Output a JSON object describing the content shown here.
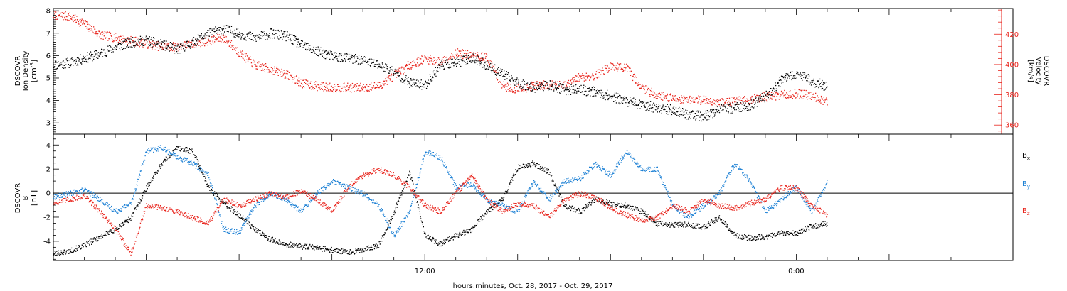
{
  "chart_data": [
    {
      "type": "scatter",
      "panel": "top",
      "ylabel_lines": [
        "DSCOVR",
        "Ion Density"
      ],
      "yunit_left": "[cm",
      "yunit_left_sup": "-3",
      "yunit_left_end": "]",
      "ylim": [
        2.5,
        8.1
      ],
      "yticks": [
        3,
        4,
        5,
        6,
        7,
        8
      ],
      "ylabel_right_lines": [
        "DSCOVR",
        "Velocity",
        "[km/s]"
      ],
      "ylim_right": [
        354,
        437
      ],
      "yticks_right": [
        360,
        380,
        400,
        420
      ],
      "colors": {
        "density": "#000000",
        "velocity": "#e8241c"
      },
      "series": [
        {
          "axis": "left",
          "color": "#000000",
          "x": [
            0.0,
            0.5,
            1.0,
            1.5,
            2.0,
            2.5,
            3.0,
            3.5,
            4.0,
            4.5,
            5.0,
            5.5,
            6.0,
            6.5,
            7.0,
            7.5,
            8.0,
            8.5,
            9.0,
            9.5,
            10.0,
            10.5,
            11.0,
            11.5,
            12.0,
            12.5,
            13.0,
            13.5,
            14.0,
            14.5,
            15.0,
            15.5,
            16.0,
            16.5,
            17.0,
            17.5,
            18.0,
            18.5,
            19.0,
            19.5,
            20.0,
            20.5,
            21.0,
            21.5,
            22.0,
            22.5,
            23.0,
            23.5,
            24.0,
            24.5,
            25.0
          ],
          "values": [
            5.6,
            5.7,
            5.9,
            6.1,
            6.4,
            6.6,
            6.7,
            6.5,
            6.3,
            6.6,
            7.0,
            7.2,
            7.0,
            6.8,
            7.0,
            6.9,
            6.5,
            6.2,
            6.0,
            5.9,
            5.8,
            5.6,
            5.3,
            4.8,
            4.7,
            5.6,
            5.7,
            5.9,
            5.6,
            5.2,
            4.8,
            4.6,
            4.7,
            4.5,
            4.5,
            4.4,
            4.2,
            4.0,
            3.8,
            3.7,
            3.6,
            3.4,
            3.3,
            3.6,
            3.7,
            3.8,
            4.2,
            4.9,
            5.2,
            4.9,
            4.6
          ]
        },
        {
          "axis": "right",
          "color": "#e8241c",
          "x": [
            0.0,
            0.5,
            1.0,
            1.5,
            2.0,
            2.5,
            3.0,
            3.5,
            4.0,
            4.5,
            5.0,
            5.5,
            6.0,
            6.5,
            7.0,
            7.5,
            8.0,
            8.5,
            9.0,
            9.5,
            10.0,
            10.5,
            11.0,
            11.5,
            12.0,
            12.5,
            13.0,
            13.5,
            14.0,
            14.5,
            15.0,
            15.5,
            16.0,
            16.5,
            17.0,
            17.5,
            18.0,
            18.5,
            19.0,
            19.5,
            20.0,
            20.5,
            21.0,
            21.5,
            22.0,
            22.5,
            23.0,
            23.5,
            24.0,
            24.5,
            25.0
          ],
          "values": [
            433,
            432,
            427,
            420,
            418,
            416,
            414,
            412,
            412,
            414,
            416,
            418,
            408,
            400,
            397,
            394,
            388,
            386,
            385,
            385,
            385,
            386,
            393,
            400,
            404,
            402,
            408,
            406,
            405,
            386,
            384,
            386,
            387,
            386,
            392,
            393,
            399,
            398,
            385,
            380,
            378,
            377,
            377,
            375,
            376,
            377,
            379,
            380,
            381,
            380,
            375
          ]
        }
      ]
    },
    {
      "type": "scatter",
      "panel": "bottom",
      "ylabel_lines": [
        "DSCOVR",
        "B"
      ],
      "yunit_left": "[nT]",
      "ylim": [
        -5.6,
        4.9
      ],
      "yticks": [
        -4,
        -2,
        0,
        2,
        4
      ],
      "xlim": [
        0,
        31
      ],
      "xticks_labeled": [
        {
          "x": 12,
          "label": "12:00"
        },
        {
          "x": 24,
          "label": "0:00"
        }
      ],
      "xlabel": "hours:minutes, Oct. 28, 2017 - Oct. 29, 2017",
      "legend_placement": "right",
      "series": [
        {
          "name": "B",
          "sub": "x",
          "color": "#000000",
          "x": [
            0.0,
            0.5,
            1.0,
            1.5,
            2.0,
            2.5,
            3.0,
            3.5,
            4.0,
            4.5,
            5.0,
            5.5,
            6.0,
            6.5,
            7.0,
            7.5,
            8.0,
            8.5,
            9.0,
            9.5,
            10.0,
            10.5,
            11.0,
            11.5,
            12.0,
            12.5,
            13.0,
            13.5,
            14.0,
            14.5,
            15.0,
            15.5,
            16.0,
            16.5,
            17.0,
            17.5,
            18.0,
            18.5,
            19.0,
            19.5,
            20.0,
            20.5,
            21.0,
            21.5,
            22.0,
            22.5,
            23.0,
            23.5,
            24.0,
            24.5,
            25.0
          ],
          "values": [
            -5.0,
            -4.8,
            -4.3,
            -3.6,
            -3.0,
            -2.0,
            0.5,
            2.5,
            3.8,
            3.5,
            0.5,
            -0.8,
            -1.8,
            -3.0,
            -3.8,
            -4.2,
            -4.4,
            -4.5,
            -4.7,
            -4.9,
            -4.7,
            -4.3,
            -1.5,
            1.8,
            -3.5,
            -4.2,
            -3.5,
            -3.0,
            -1.5,
            -0.5,
            2.2,
            2.5,
            1.8,
            -1.0,
            -1.5,
            -0.5,
            -0.8,
            -1.0,
            -1.5,
            -2.5,
            -2.6,
            -2.6,
            -2.8,
            -2.0,
            -3.5,
            -3.7,
            -3.6,
            -3.3,
            -3.3,
            -2.7,
            -2.5
          ]
        },
        {
          "name": "B",
          "sub": "y",
          "color": "#1a7fd4",
          "x": [
            0.0,
            0.5,
            1.0,
            1.5,
            2.0,
            2.5,
            3.0,
            3.5,
            4.0,
            4.5,
            5.0,
            5.5,
            6.0,
            6.5,
            7.0,
            7.5,
            8.0,
            8.5,
            9.0,
            9.5,
            10.0,
            10.5,
            11.0,
            11.5,
            12.0,
            12.5,
            13.0,
            13.5,
            14.0,
            14.5,
            15.0,
            15.5,
            16.0,
            16.5,
            17.0,
            17.5,
            18.0,
            18.5,
            19.0,
            19.5,
            20.0,
            20.5,
            21.0,
            21.5,
            22.0,
            22.5,
            23.0,
            23.5,
            24.0,
            24.5,
            25.0
          ],
          "values": [
            -0.3,
            0.0,
            0.3,
            -0.5,
            -1.5,
            -0.8,
            3.5,
            3.8,
            3.0,
            2.5,
            1.5,
            -3.0,
            -3.2,
            -1.0,
            0.0,
            -0.5,
            -1.5,
            0.0,
            1.0,
            0.5,
            0.0,
            -1.0,
            -3.5,
            -1.5,
            3.5,
            3.0,
            0.5,
            0.8,
            -0.5,
            -1.0,
            -1.5,
            1.0,
            -0.5,
            1.0,
            1.2,
            2.5,
            1.5,
            3.5,
            2.0,
            2.0,
            -1.0,
            -2.0,
            -1.0,
            0.0,
            2.5,
            1.0,
            -1.5,
            -0.5,
            0.5,
            -1.5,
            1.0
          ]
        },
        {
          "name": "B",
          "sub": "z",
          "color": "#e8241c",
          "x": [
            0.0,
            0.5,
            1.0,
            1.5,
            2.0,
            2.5,
            3.0,
            3.5,
            4.0,
            4.5,
            5.0,
            5.5,
            6.0,
            6.5,
            7.0,
            7.5,
            8.0,
            8.5,
            9.0,
            9.5,
            10.0,
            10.5,
            11.0,
            11.5,
            12.0,
            12.5,
            13.0,
            13.5,
            14.0,
            14.5,
            15.0,
            15.5,
            16.0,
            16.5,
            17.0,
            17.5,
            18.0,
            18.5,
            19.0,
            19.5,
            20.0,
            20.5,
            21.0,
            21.5,
            22.0,
            22.5,
            23.0,
            23.5,
            24.0,
            24.5,
            25.0
          ],
          "values": [
            -0.8,
            -0.5,
            -0.2,
            -1.5,
            -3.0,
            -5.0,
            -1.0,
            -1.2,
            -1.5,
            -2.0,
            -2.5,
            -0.5,
            -1.0,
            -0.5,
            0.0,
            -0.3,
            0.2,
            -0.5,
            -1.5,
            0.5,
            1.5,
            2.0,
            1.5,
            0.5,
            -1.0,
            -1.5,
            0.0,
            1.5,
            -0.5,
            -1.5,
            -0.8,
            -1.0,
            -2.0,
            -0.5,
            0.0,
            -0.3,
            -1.2,
            -1.8,
            -2.2,
            -2.0,
            -1.0,
            -1.5,
            -0.5,
            -1.0,
            -1.2,
            -0.8,
            -0.5,
            0.5,
            0.5,
            -1.0,
            -1.8
          ]
        }
      ]
    }
  ]
}
